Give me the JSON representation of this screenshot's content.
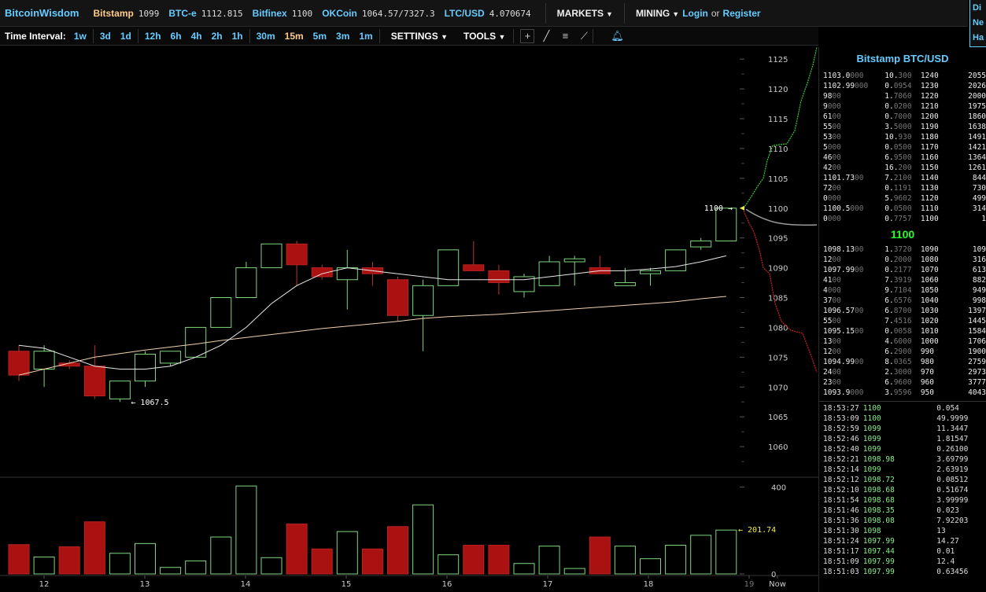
{
  "topbar": {
    "logo": "BitcoinWisdom",
    "exchanges": [
      {
        "name": "Bitstamp",
        "value": "1099"
      },
      {
        "name": "BTC-e",
        "value": "1112.815"
      },
      {
        "name": "Bitfinex",
        "value": "1100"
      },
      {
        "name": "OKCoin",
        "value": "1064.57/7327.3"
      },
      {
        "name": "LTC/USD",
        "value": "4.070674"
      }
    ],
    "markets_label": "MARKETS",
    "mining_label": "MINING",
    "login_label": "Login",
    "or_label": "or",
    "register_label": "Register"
  },
  "sidenote": [
    "Di",
    "Ne",
    "Ha"
  ],
  "toolbar": {
    "time_interval_label": "Time Interval:",
    "intervals": [
      "1w",
      "3d",
      "1d",
      "12h",
      "6h",
      "4h",
      "2h",
      "1h",
      "30m",
      "15m",
      "5m",
      "3m",
      "1m"
    ],
    "active_interval": "15m",
    "settings_label": "SETTINGS",
    "tools_label": "TOOLS"
  },
  "colors": {
    "accent": "#66ccff",
    "active": "#ffcc88",
    "up": "#7fd67f",
    "down": "#aa1111",
    "ma_fast": "#e8e8e8",
    "ma_slow": "#f0d0b0"
  },
  "chart_data": {
    "type": "candlestick",
    "price_axis": {
      "ticks": [
        1060,
        1065,
        1070,
        1075,
        1080,
        1085,
        1090,
        1095,
        1100,
        1105,
        1110,
        1115,
        1120,
        1125
      ],
      "range": [
        1055,
        1127
      ]
    },
    "volume_axis": {
      "ticks": [
        0,
        400
      ],
      "range": [
        0,
        420
      ]
    },
    "x_labels": [
      "12",
      "13",
      "14",
      "15",
      "16",
      "17",
      "18",
      "19",
      "Now"
    ],
    "candles": [
      {
        "o": 1076,
        "h": 1077,
        "l": 1071,
        "c": 1072,
        "v": 135
      },
      {
        "o": 1073,
        "h": 1077,
        "l": 1070,
        "c": 1076,
        "v": 78
      },
      {
        "o": 1074,
        "h": 1074.5,
        "l": 1073,
        "c": 1073.5,
        "v": 125
      },
      {
        "o": 1073.5,
        "h": 1077,
        "l": 1068,
        "c": 1068.5,
        "v": 240
      },
      {
        "o": 1068,
        "h": 1071,
        "l": 1067.5,
        "c": 1071,
        "v": 95
      },
      {
        "o": 1071,
        "h": 1076,
        "l": 1070,
        "c": 1075.5,
        "v": 140
      },
      {
        "o": 1074,
        "h": 1076,
        "l": 1073.5,
        "c": 1076,
        "v": 30
      },
      {
        "o": 1075,
        "h": 1080,
        "l": 1075,
        "c": 1080,
        "v": 60
      },
      {
        "o": 1080,
        "h": 1085,
        "l": 1080,
        "c": 1085,
        "v": 170
      },
      {
        "o": 1085,
        "h": 1091,
        "l": 1085,
        "c": 1090,
        "v": 405
      },
      {
        "o": 1090,
        "h": 1094,
        "l": 1090,
        "c": 1094,
        "v": 75
      },
      {
        "o": 1094,
        "h": 1094.5,
        "l": 1087,
        "c": 1090.5,
        "v": 230
      },
      {
        "o": 1090,
        "h": 1090.5,
        "l": 1088,
        "c": 1088.5,
        "v": 115
      },
      {
        "o": 1088,
        "h": 1093,
        "l": 1083,
        "c": 1090,
        "v": 195
      },
      {
        "o": 1090,
        "h": 1091,
        "l": 1087,
        "c": 1089,
        "v": 115
      },
      {
        "o": 1088,
        "h": 1088.5,
        "l": 1081,
        "c": 1082,
        "v": 218
      },
      {
        "o": 1082,
        "h": 1088,
        "l": 1076,
        "c": 1087,
        "v": 318
      },
      {
        "o": 1087,
        "h": 1093,
        "l": 1087,
        "c": 1093,
        "v": 88
      },
      {
        "o": 1090.5,
        "h": 1094.5,
        "l": 1089.5,
        "c": 1089.5,
        "v": 132
      },
      {
        "o": 1089.5,
        "h": 1090.5,
        "l": 1085.5,
        "c": 1087.5,
        "v": 132
      },
      {
        "o": 1086,
        "h": 1089,
        "l": 1085,
        "c": 1088.5,
        "v": 48
      },
      {
        "o": 1087,
        "h": 1092,
        "l": 1087,
        "c": 1091,
        "v": 128
      },
      {
        "o": 1091,
        "h": 1092,
        "l": 1087,
        "c": 1091.5,
        "v": 25
      },
      {
        "o": 1090,
        "h": 1092,
        "l": 1089,
        "c": 1089,
        "v": 170
      },
      {
        "o": 1087,
        "h": 1090,
        "l": 1087,
        "c": 1087.5,
        "v": 128
      },
      {
        "o": 1089,
        "h": 1090,
        "l": 1087,
        "c": 1089.5,
        "v": 70
      },
      {
        "o": 1089.5,
        "h": 1093,
        "l": 1089.5,
        "c": 1093,
        "v": 132
      },
      {
        "o": 1093.5,
        "h": 1095,
        "l": 1093,
        "c": 1094.5,
        "v": 178
      },
      {
        "o": 1094.5,
        "h": 1100,
        "l": 1094.5,
        "c": 1100,
        "v": 202
      }
    ],
    "ma_fast": [
      1077,
      1076.5,
      1075,
      1073.5,
      1073,
      1073,
      1073.5,
      1075,
      1077,
      1080,
      1084,
      1087,
      1089,
      1090,
      1089.5,
      1089,
      1088.5,
      1088,
      1088,
      1088,
      1088,
      1088.5,
      1089,
      1089.5,
      1089.5,
      1089.8,
      1090.2,
      1091,
      1092
    ],
    "ma_slow": [
      1072,
      1073,
      1074,
      1075,
      1075.6,
      1076.2,
      1076.7,
      1077.2,
      1077.8,
      1078.3,
      1078.8,
      1079.3,
      1079.8,
      1080.2,
      1080.6,
      1081,
      1081.5,
      1081.8,
      1082,
      1082.2,
      1082.5,
      1082.8,
      1083.1,
      1083.4,
      1083.7,
      1084,
      1084.3,
      1084.8,
      1085.2
    ],
    "annotations": {
      "low_label": "← 1067.5",
      "last_label": "1100 →",
      "volume_label": "← 201.74"
    }
  },
  "orderbook": {
    "title": "Bitstamp BTC/USD",
    "asks": [
      {
        "price": "1103.0",
        "pdim": "000",
        "amt": "10.",
        "adim": "300",
        "sum": "1240",
        "total": "2055"
      },
      {
        "price": "1102.99",
        "pdim": "000",
        "amt": "0.",
        "adim": "0954",
        "sum": "1230",
        "total": "2026"
      },
      {
        "price": "98",
        "pdim": "00",
        "amt": "1.",
        "adim": "7060",
        "sum": "1220",
        "total": "2000"
      },
      {
        "price": "9",
        "pdim": "000",
        "amt": "0.",
        "adim": "0200",
        "sum": "1210",
        "total": "1975"
      },
      {
        "price": "61",
        "pdim": "00",
        "amt": "0.",
        "adim": "7000",
        "sum": "1200",
        "total": "1860"
      },
      {
        "price": "55",
        "pdim": "00",
        "amt": "3.",
        "adim": "5000",
        "sum": "1190",
        "total": "1638"
      },
      {
        "price": "53",
        "pdim": "00",
        "amt": "10.",
        "adim": "930",
        "sum": "1180",
        "total": "1491"
      },
      {
        "price": "5",
        "pdim": "000",
        "amt": "0.",
        "adim": "0500",
        "sum": "1170",
        "total": "1421"
      },
      {
        "price": "46",
        "pdim": "00",
        "amt": "6.",
        "adim": "9500",
        "sum": "1160",
        "total": "1364"
      },
      {
        "price": "42",
        "pdim": "00",
        "amt": "16.",
        "adim": "200",
        "sum": "1150",
        "total": "1261"
      },
      {
        "price": "1101.73",
        "pdim": "00",
        "amt": "7.",
        "adim": "2100",
        "sum": "1140",
        "total": "844"
      },
      {
        "price": "72",
        "pdim": "00",
        "amt": "0.",
        "adim": "1191",
        "sum": "1130",
        "total": "730"
      },
      {
        "price": "0",
        "pdim": "000",
        "amt": "5.",
        "adim": "9602",
        "sum": "1120",
        "total": "499"
      },
      {
        "price": "1100.5",
        "pdim": "000",
        "amt": "0.",
        "adim": "0500",
        "sum": "1110",
        "total": "314"
      },
      {
        "price": "0",
        "pdim": "000",
        "amt": "0.",
        "adim": "7757",
        "sum": "1100",
        "total": "1"
      }
    ],
    "mid_price": "1100",
    "bids": [
      {
        "price": "1098.13",
        "pdim": "00",
        "amt": "1.",
        "adim": "3720",
        "sum": "1090",
        "total": "109"
      },
      {
        "price": "12",
        "pdim": "00",
        "amt": "0.",
        "adim": "2000",
        "sum": "1080",
        "total": "316"
      },
      {
        "price": "1097.99",
        "pdim": "00",
        "amt": "0.",
        "adim": "2177",
        "sum": "1070",
        "total": "613"
      },
      {
        "price": "41",
        "pdim": "00",
        "amt": "7.",
        "adim": "3919",
        "sum": "1060",
        "total": "882"
      },
      {
        "price": "4",
        "pdim": "000",
        "amt": "9.",
        "adim": "7104",
        "sum": "1050",
        "total": "949"
      },
      {
        "price": "37",
        "pdim": "00",
        "amt": "6.",
        "adim": "6576",
        "sum": "1040",
        "total": "998"
      },
      {
        "price": "1096.57",
        "pdim": "00",
        "amt": "6.",
        "adim": "8700",
        "sum": "1030",
        "total": "1397"
      },
      {
        "price": "55",
        "pdim": "00",
        "amt": "7.",
        "adim": "4516",
        "sum": "1020",
        "total": "1445"
      },
      {
        "price": "1095.15",
        "pdim": "00",
        "amt": "0.",
        "adim": "0058",
        "sum": "1010",
        "total": "1584"
      },
      {
        "price": "13",
        "pdim": "00",
        "amt": "4.",
        "adim": "6000",
        "sum": "1000",
        "total": "1706"
      },
      {
        "price": "12",
        "pdim": "00",
        "amt": "6.",
        "adim": "2900",
        "sum": "990",
        "total": "1900"
      },
      {
        "price": "1094.99",
        "pdim": "00",
        "amt": "8.",
        "adim": "0365",
        "sum": "980",
        "total": "2759"
      },
      {
        "price": "24",
        "pdim": "00",
        "amt": "2.",
        "adim": "3000",
        "sum": "970",
        "total": "2973"
      },
      {
        "price": "23",
        "pdim": "00",
        "amt": "6.",
        "adim": "9600",
        "sum": "960",
        "total": "3777"
      },
      {
        "price": "1093.9",
        "pdim": "000",
        "amt": "3.",
        "adim": "9596",
        "sum": "950",
        "total": "4043"
      }
    ]
  },
  "trades": [
    {
      "time": "18:53:27",
      "price": "1100",
      "amount": "0.054"
    },
    {
      "time": "18:53:09",
      "price": "1100",
      "amount": "49.9999"
    },
    {
      "time": "18:52:59",
      "price": "1099",
      "amount": "11.3447"
    },
    {
      "time": "18:52:46",
      "price": "1099",
      "amount": "1.81547"
    },
    {
      "time": "18:52:40",
      "price": "1099",
      "amount": "0.26100"
    },
    {
      "time": "18:52:21",
      "price": "1098.98",
      "amount": "3.69799"
    },
    {
      "time": "18:52:14",
      "price": "1099",
      "amount": "2.63919"
    },
    {
      "time": "18:52:12",
      "price": "1098.72",
      "amount": "0.08512"
    },
    {
      "time": "18:52:10",
      "price": "1098.68",
      "amount": "0.51674"
    },
    {
      "time": "18:51:54",
      "price": "1098.68",
      "amount": "3.99999"
    },
    {
      "time": "18:51:46",
      "price": "1098.35",
      "amount": "0.023"
    },
    {
      "time": "18:51:36",
      "price": "1098.08",
      "amount": "7.92203"
    },
    {
      "time": "18:51:30",
      "price": "1098",
      "amount": "13"
    },
    {
      "time": "18:51:24",
      "price": "1097.99",
      "amount": "14.27"
    },
    {
      "time": "18:51:17",
      "price": "1097.44",
      "amount": "0.01"
    },
    {
      "time": "18:51:09",
      "price": "1097.99",
      "amount": "12.4"
    },
    {
      "time": "18:51:03",
      "price": "1097.99",
      "amount": "0.63456"
    }
  ]
}
